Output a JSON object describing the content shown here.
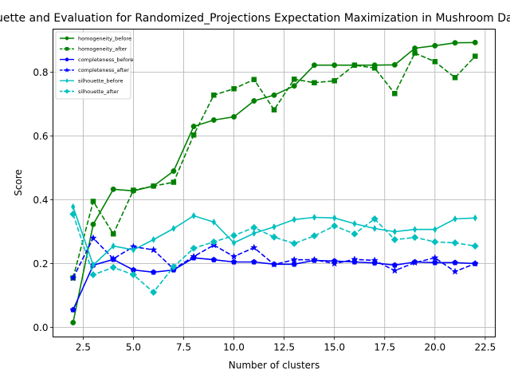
{
  "chart_data": {
    "type": "line",
    "title": "Silhouette and Evaluation for Randomized_Projections Expectation Maximization in Mushroom Dataset",
    "xlabel": "Number of clusters",
    "ylabel": "Score",
    "xlim": [
      1.0,
      23.0
    ],
    "ylim": [
      -0.03,
      0.935
    ],
    "xticks": [
      2.5,
      5.0,
      7.5,
      10.0,
      12.5,
      15.0,
      17.5,
      20.0,
      22.5
    ],
    "xtick_labels": [
      "2.5",
      "5.0",
      "7.5",
      "10.0",
      "12.5",
      "15.0",
      "17.5",
      "20.0",
      "22.5"
    ],
    "yticks": [
      0.0,
      0.2,
      0.4,
      0.6,
      0.8
    ],
    "ytick_labels": [
      "0.0",
      "0.2",
      "0.4",
      "0.6",
      "0.8"
    ],
    "grid": true,
    "legend_position": "top-left",
    "x": [
      2,
      3,
      4,
      5,
      6,
      7,
      8,
      9,
      10,
      11,
      12,
      13,
      14,
      15,
      16,
      17,
      18,
      19,
      20,
      21,
      22
    ],
    "series": [
      {
        "name": "homogeneity_before",
        "color": "#008000",
        "linestyle": "solid",
        "marker": "circle",
        "values": [
          0.015,
          0.323,
          0.433,
          0.428,
          0.443,
          0.49,
          0.63,
          0.65,
          0.66,
          0.71,
          0.728,
          0.757,
          0.822,
          0.822,
          0.822,
          0.822,
          0.823,
          0.875,
          0.883,
          0.892,
          0.893
        ]
      },
      {
        "name": "homogeneity_after",
        "color": "#008000",
        "linestyle": "dashed",
        "marker": "square",
        "values": [
          0.155,
          0.395,
          0.293,
          0.43,
          0.443,
          0.455,
          0.603,
          0.728,
          0.748,
          0.777,
          0.682,
          0.778,
          0.767,
          0.773,
          0.822,
          0.813,
          0.733,
          0.86,
          0.833,
          0.783,
          0.85
        ]
      },
      {
        "name": "completeness_before",
        "color": "#0000ff",
        "linestyle": "solid",
        "marker": "pentagon",
        "values": [
          0.055,
          0.195,
          0.213,
          0.18,
          0.173,
          0.18,
          0.218,
          0.212,
          0.205,
          0.205,
          0.198,
          0.198,
          0.21,
          0.208,
          0.205,
          0.202,
          0.195,
          0.205,
          0.203,
          0.203,
          0.2
        ]
      },
      {
        "name": "completeness_after",
        "color": "#0000ff",
        "linestyle": "dashed",
        "marker": "star",
        "values": [
          0.155,
          0.28,
          0.215,
          0.253,
          0.243,
          0.183,
          0.222,
          0.258,
          0.222,
          0.25,
          0.197,
          0.212,
          0.212,
          0.2,
          0.213,
          0.21,
          0.178,
          0.203,
          0.218,
          0.175,
          0.2
        ]
      },
      {
        "name": "silhouette_before",
        "color": "#00bfbf",
        "linestyle": "solid",
        "marker": "thin_diamond",
        "values": [
          0.378,
          0.195,
          0.255,
          0.243,
          0.275,
          0.31,
          0.35,
          0.33,
          0.265,
          0.295,
          0.315,
          0.338,
          0.345,
          0.343,
          0.325,
          0.31,
          0.3,
          0.307,
          0.307,
          0.34,
          0.343
        ]
      },
      {
        "name": "silhouette_after",
        "color": "#00bfbf",
        "linestyle": "dashed",
        "marker": "diamond",
        "values": [
          0.355,
          0.165,
          0.188,
          0.165,
          0.11,
          0.19,
          0.248,
          0.268,
          0.288,
          0.313,
          0.283,
          0.263,
          0.287,
          0.318,
          0.293,
          0.34,
          0.275,
          0.282,
          0.268,
          0.265,
          0.255
        ]
      }
    ]
  }
}
